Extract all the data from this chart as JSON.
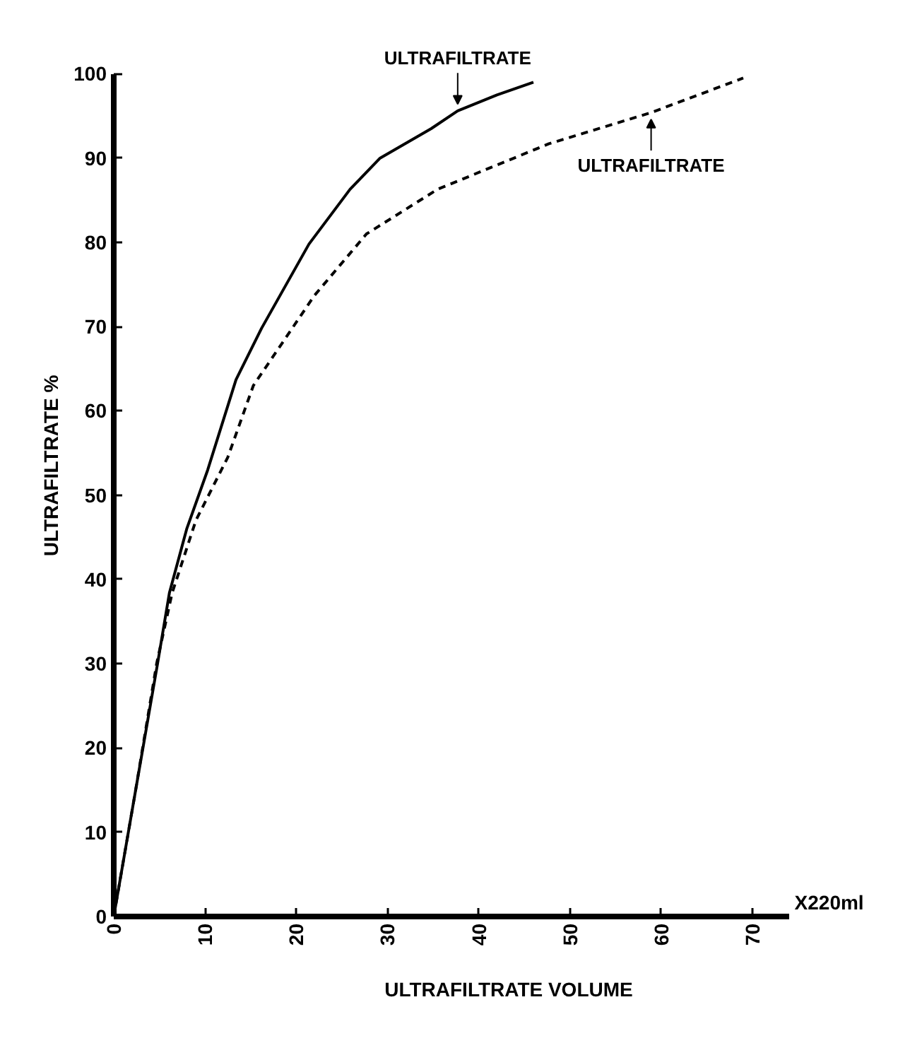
{
  "chart_data": {
    "type": "line",
    "xlabel": "ULTRAFILTRATE VOLUME",
    "ylabel": "ULTRAFILTRATE %",
    "xlim": [
      0,
      74
    ],
    "ylim": [
      0,
      100
    ],
    "xticks": [
      0,
      10,
      20,
      30,
      40,
      50,
      60,
      70
    ],
    "yticks": [
      0,
      10,
      20,
      30,
      40,
      50,
      60,
      70,
      80,
      90,
      100
    ],
    "grid": false,
    "marker": "none",
    "series": [
      {
        "color": "#000000",
        "line_style": "solid",
        "x": [
          0,
          2.4,
          4.8,
          6.1,
          8,
          10.3,
          13.4,
          16.2,
          21.4,
          25.9,
          29.2,
          34.8,
          37.7,
          42,
          46
        ],
        "values": [
          0,
          15,
          30,
          38.4,
          46,
          53,
          63.7,
          69.8,
          79.8,
          86.3,
          90,
          93.5,
          95.6,
          97.5,
          99
        ]
      },
      {
        "color": "#000000",
        "line_style": "dashed",
        "x": [
          0,
          2.4,
          4.7,
          6.4,
          9,
          12.5,
          15.3,
          22,
          27.7,
          35.5,
          47.7,
          58.9,
          69
        ],
        "values": [
          0,
          15,
          30,
          38.4,
          47,
          54.5,
          63,
          73.7,
          81,
          86.3,
          91.7,
          95.4,
          99.5
        ]
      }
    ],
    "annotations": [
      {
        "text": "ULTRAFILTRATE",
        "x": 37.7,
        "y": 95.6
      },
      {
        "text": "ULTRAFILTRATE",
        "x": 58.9,
        "y": 95.4
      },
      "X220ml"
    ]
  }
}
